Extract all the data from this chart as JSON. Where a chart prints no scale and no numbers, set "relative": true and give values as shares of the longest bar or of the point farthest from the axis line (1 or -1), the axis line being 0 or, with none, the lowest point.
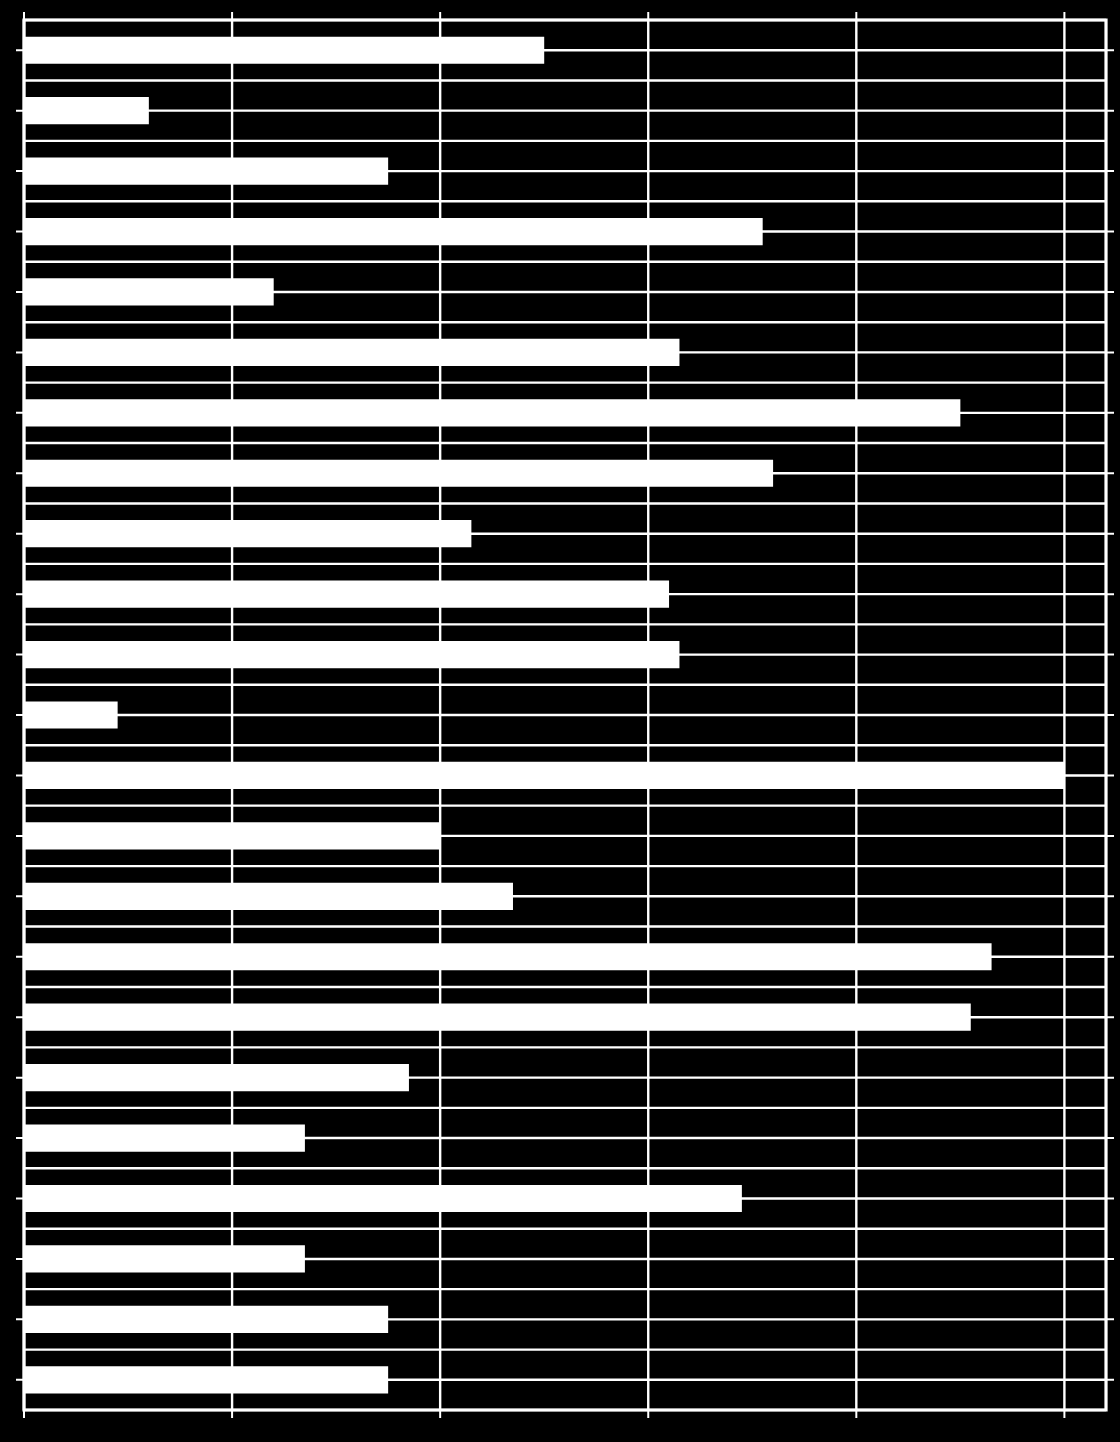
{
  "chart_data": {
    "type": "bar",
    "orientation": "horizontal",
    "relative": true,
    "categories": [
      null,
      null,
      null,
      null,
      null,
      null,
      null,
      null,
      null,
      null,
      null,
      null,
      null,
      null,
      null,
      null,
      null,
      null,
      null,
      null,
      null,
      null,
      null
    ],
    "values": [
      0.5,
      0.12,
      0.35,
      0.71,
      0.24,
      0.63,
      0.9,
      0.72,
      0.43,
      0.62,
      0.63,
      0.09,
      1,
      0.4,
      0.47,
      0.93,
      0.91,
      0.37,
      0.27,
      0.69,
      0.27,
      0.35,
      0.35
    ],
    "color": "#ffffff",
    "grid": true
  }
}
